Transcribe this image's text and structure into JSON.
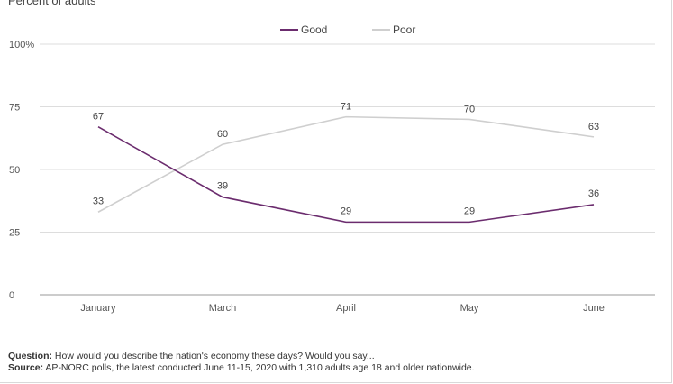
{
  "chart_data": {
    "type": "line",
    "subtitle": "Percent of adults",
    "categories": [
      "January",
      "March",
      "April",
      "May",
      "June"
    ],
    "ylim": [
      0,
      100
    ],
    "yticks": [
      "0",
      "25",
      "50",
      "75",
      "100%"
    ],
    "ytick_values": [
      0,
      25,
      50,
      75,
      100
    ],
    "grid": true,
    "legend_position": "top-center",
    "series": [
      {
        "name": "Good",
        "color": "#6b2c6e",
        "values": [
          67,
          39,
          29,
          29,
          36
        ]
      },
      {
        "name": "Poor",
        "color": "#cfcfcf",
        "values": [
          33,
          60,
          71,
          70,
          63
        ]
      }
    ]
  },
  "notes": {
    "question_label": "Question:",
    "question_text": " How would you describe the nation's economy these days? Would you say...",
    "source_label": "Source:",
    "source_text": " AP-NORC polls, the latest conducted June 11-15, 2020 with 1,310 adults age 18 and older nationwide."
  }
}
